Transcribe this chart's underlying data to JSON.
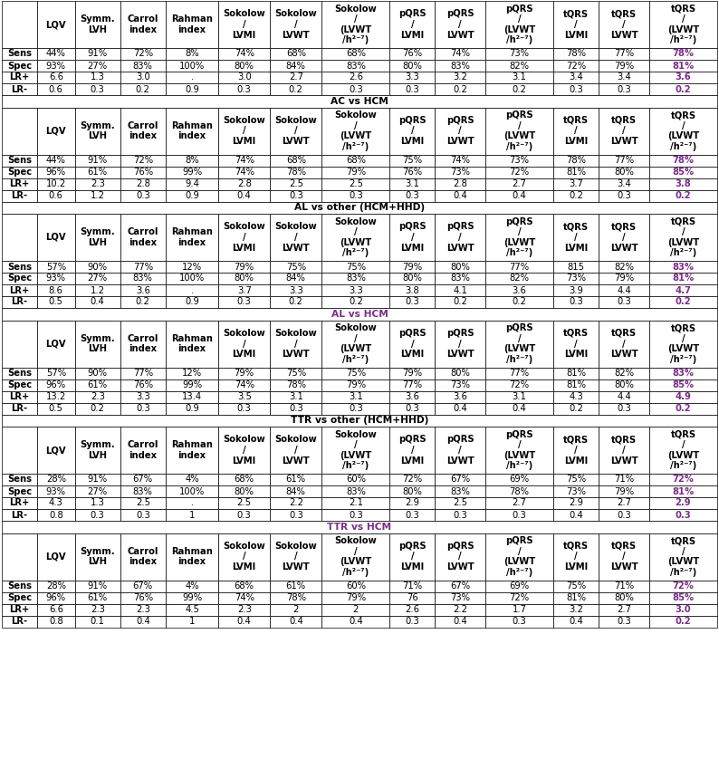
{
  "col_headers": [
    "",
    "LQV",
    "Symm.\nLVH",
    "Carrol\nindex",
    "Rahman\nindex",
    "Sokolow\n/\nLVMI",
    "Sokolow\n/\nLVWT",
    "Sokolow\n/\n(LVWT\n/h²⁻⁷)",
    "pQRS\n/\nLVMI",
    "pQRS\n/\nLVWT",
    "pQRS\n/\n(LVWT\n/h²⁻⁷)",
    "tQRS\n/\nLVMI",
    "tQRS\n/\nLVWT",
    "tQRS\n/\n(LVWT\n/h²⁻⁷)"
  ],
  "row_labels": [
    "Sens",
    "Spec",
    "LR+",
    "LR-"
  ],
  "sections": [
    {
      "title": "",
      "title_color": "black",
      "rows": [
        [
          "44%",
          "91%",
          "72%",
          "8%",
          "74%",
          "68%",
          "68%",
          "76%",
          "74%",
          "73%",
          "78%",
          "77%",
          "78%"
        ],
        [
          "93%",
          "27%",
          "83%",
          "100%",
          "80%",
          "84%",
          "83%",
          "80%",
          "83%",
          "82%",
          "72%",
          "79%",
          "81%"
        ],
        [
          "6.6",
          "1.3",
          "3.0",
          ".",
          "3.0",
          "2.7",
          "2.6",
          "3.3",
          "3.2",
          "3.1",
          "3.4",
          "3.4",
          "3.6"
        ],
        [
          "0.6",
          "0.3",
          "0.2",
          "0.9",
          "0.3",
          "0.2",
          "0.3",
          "0.3",
          "0.2",
          "0.2",
          "0.3",
          "0.3",
          "0.2"
        ]
      ]
    },
    {
      "title": "AC vs HCM",
      "title_color": "black",
      "rows": [
        [
          "44%",
          "91%",
          "72%",
          "8%",
          "74%",
          "68%",
          "68%",
          "75%",
          "74%",
          "73%",
          "78%",
          "77%",
          "78%"
        ],
        [
          "96%",
          "61%",
          "76%",
          "99%",
          "74%",
          "78%",
          "79%",
          "76%",
          "73%",
          "72%",
          "81%",
          "80%",
          "85%"
        ],
        [
          "10.2",
          "2.3",
          "2.8",
          "9.4",
          "2.8",
          "2.5",
          "2.5",
          "3.1",
          "2.8",
          "2.7",
          "3.7",
          "3.4",
          "3.8"
        ],
        [
          "0.6",
          "1.2",
          "0.3",
          "0.9",
          "0.4",
          "0.3",
          "0.3",
          "0.3",
          "0.4",
          "0.4",
          "0.2",
          "0.3",
          "0.2"
        ]
      ]
    },
    {
      "title": "AL vs other (HCM+HHD)",
      "title_color": "black",
      "rows": [
        [
          "57%",
          "90%",
          "77%",
          "12%",
          "79%",
          "75%",
          "75%",
          "79%",
          "80%",
          "77%",
          "815",
          "82%",
          "83%"
        ],
        [
          "93%",
          "27%",
          "83%",
          "100%",
          "80%",
          "84%",
          "83%",
          "80%",
          "83%",
          "82%",
          "73%",
          "79%",
          "81%"
        ],
        [
          "8.6",
          "1.2",
          "3.6",
          ".",
          "3.7",
          "3.3",
          "3.3",
          "3.8",
          "4.1",
          "3.6",
          "3.9",
          "4.4",
          "4.7"
        ],
        [
          "0.5",
          "0.4",
          "0.2",
          "0.9",
          "0.3",
          "0.2",
          "0.2",
          "0.3",
          "0.2",
          "0.2",
          "0.3",
          "0.3",
          "0.2"
        ]
      ]
    },
    {
      "title": "AL vs HCM",
      "title_color": "#7B2D8B",
      "rows": [
        [
          "57%",
          "90%",
          "77%",
          "12%",
          "79%",
          "75%",
          "75%",
          "79%",
          "80%",
          "77%",
          "81%",
          "82%",
          "83%"
        ],
        [
          "96%",
          "61%",
          "76%",
          "99%",
          "74%",
          "78%",
          "79%",
          "77%",
          "73%",
          "72%",
          "81%",
          "80%",
          "85%"
        ],
        [
          "13.2",
          "2.3",
          "3.3",
          "13.4",
          "3.5",
          "3.1",
          "3.1",
          "3.6",
          "3.6",
          "3.1",
          "4.3",
          "4.4",
          "4.9"
        ],
        [
          "0.5",
          "0.2",
          "0.3",
          "0.9",
          "0.3",
          "0.3",
          "0.3",
          "0.3",
          "0.4",
          "0.4",
          "0.2",
          "0.3",
          "0.2"
        ]
      ]
    },
    {
      "title": "TTR vs other (HCM+HHD)",
      "title_color": "black",
      "rows": [
        [
          "28%",
          "91%",
          "67%",
          "4%",
          "68%",
          "61%",
          "60%",
          "72%",
          "67%",
          "69%",
          "75%",
          "71%",
          "72%"
        ],
        [
          "93%",
          "27%",
          "83%",
          "100%",
          "80%",
          "84%",
          "83%",
          "80%",
          "83%",
          "78%",
          "73%",
          "79%",
          "81%"
        ],
        [
          "4.3",
          "1.3",
          "2.5",
          ".",
          "2.5",
          "2.2",
          "2.1",
          "2.9",
          "2.5",
          "2.7",
          "2.9",
          "2.7",
          "2.9"
        ],
        [
          "0.8",
          "0.3",
          "0.3",
          "1",
          "0.3",
          "0.3",
          "0.3",
          "0.3",
          "0.3",
          "0.3",
          "0.4",
          "0.3",
          "0.3"
        ]
      ]
    },
    {
      "title": "TTR vs HCM",
      "title_color": "#7B2D8B",
      "rows": [
        [
          "28%",
          "91%",
          "67%",
          "4%",
          "68%",
          "61%",
          "60%",
          "71%",
          "67%",
          "69%",
          "75%",
          "71%",
          "72%"
        ],
        [
          "96%",
          "61%",
          "76%",
          "99%",
          "74%",
          "78%",
          "79%",
          "76",
          "73%",
          "72%",
          "81%",
          "80%",
          "85%"
        ],
        [
          "6.6",
          "2.3",
          "2.3",
          "4.5",
          "2.3",
          "2",
          "2",
          "2.6",
          "2.2",
          "1.7",
          "3.2",
          "2.7",
          "3.0"
        ],
        [
          "0.8",
          "0.1",
          "0.4",
          "1",
          "0.4",
          "0.4",
          "0.4",
          "0.3",
          "0.4",
          "0.3",
          "0.4",
          "0.3",
          "0.2"
        ]
      ]
    }
  ],
  "highlight_color": "#7B2D8B"
}
